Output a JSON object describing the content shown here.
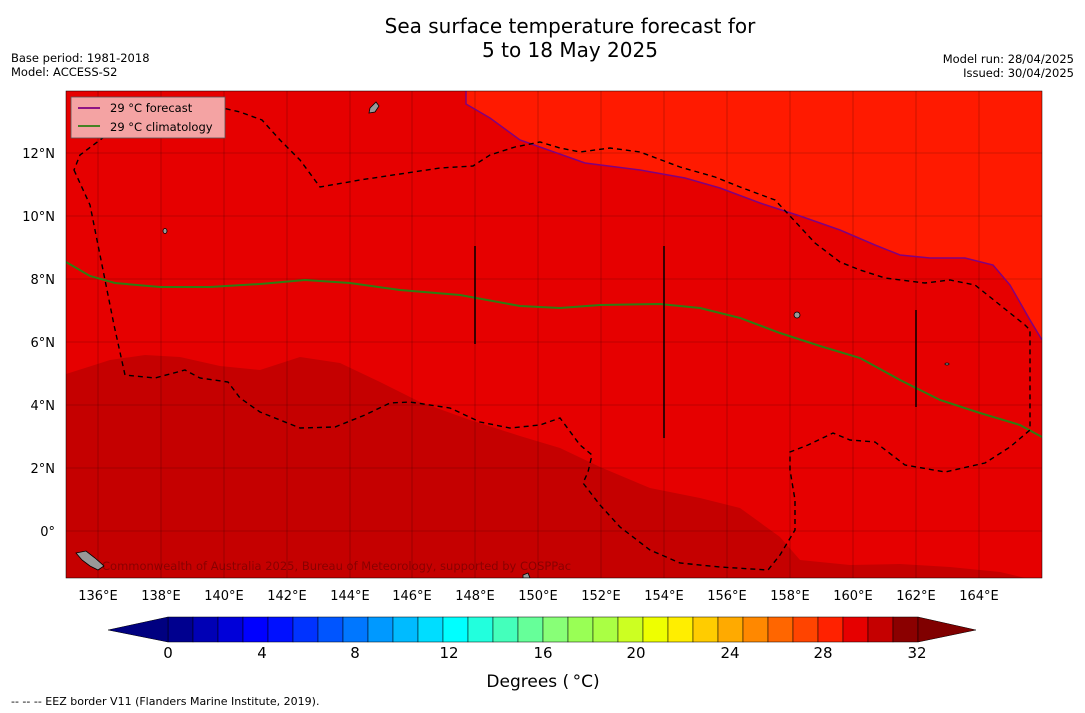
{
  "header": {
    "title_line1": "Sea surface temperature forecast for",
    "title_line2": "5 to 18 May 2025",
    "base_period": "Base period: 1981-2018",
    "model": "Model: ACCESS-S2",
    "model_run": "Model run: 28/04/2025",
    "issued": "Issued: 30/04/2025"
  },
  "map": {
    "legend": {
      "forecast_label": "29 °C  forecast",
      "climatology_label": "29 °C  climatology",
      "forecast_color": "#800080",
      "climatology_color": "#2e7d12"
    },
    "lat_labels": [
      "12°N",
      "10°N",
      "8°N",
      "6°N",
      "4°N",
      "2°N",
      "0°"
    ],
    "lon_labels": [
      "136°E",
      "138°E",
      "140°E",
      "142°E",
      "144°E",
      "146°E",
      "148°E",
      "150°E",
      "152°E",
      "154°E",
      "156°E",
      "158°E",
      "160°E",
      "162°E",
      "164°E"
    ],
    "watermark": "Commonwealth of Australia 2025, Bureau of Meteorology, supported by COSPPac",
    "colors": {
      "band_28_29": "#ff1a00",
      "band_29_30": "#e60000",
      "band_30_31": "#c50000",
      "eez_border": "#000000"
    }
  },
  "colorbar": {
    "ticks": [
      "0",
      "4",
      "8",
      "12",
      "16",
      "20",
      "24",
      "28",
      "32"
    ],
    "label": "Degrees ( °C)",
    "colors": [
      "#00008f",
      "#0000b5",
      "#0000d9",
      "#0000ff",
      "#0010ff",
      "#0033ff",
      "#0055ff",
      "#0077ff",
      "#0099ff",
      "#00bbff",
      "#00ddff",
      "#00ffff",
      "#22ffdd",
      "#44ffbb",
      "#66ff99",
      "#88ff77",
      "#99ff55",
      "#aaff44",
      "#ccff22",
      "#eeff00",
      "#ffee00",
      "#ffcc00",
      "#ffaa00",
      "#ff8800",
      "#ff6600",
      "#ff4400",
      "#ff2200",
      "#e60000",
      "#c50000",
      "#8b0000"
    ],
    "under_color": "#000080",
    "over_color": "#800000"
  },
  "footer": {
    "eez_note": "--  --  -- EEZ border V11 (Flanders Marine Institute, 2019)."
  }
}
